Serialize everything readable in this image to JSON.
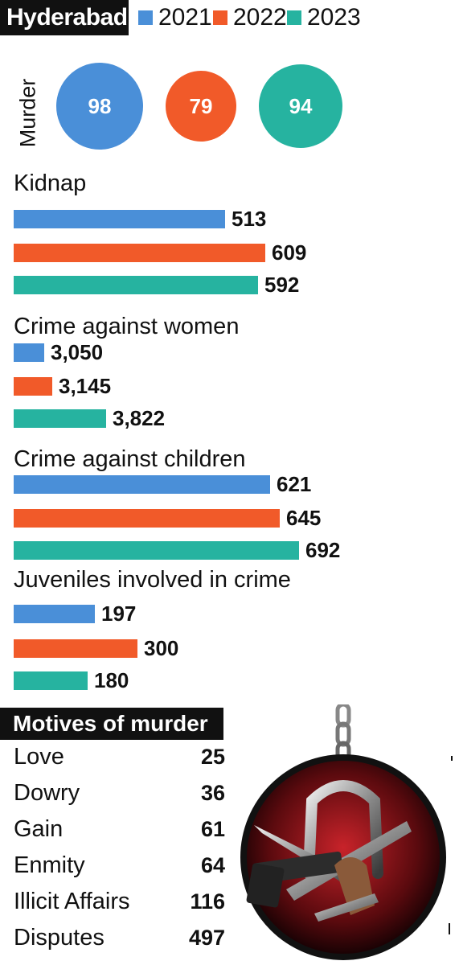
{
  "header": {
    "title": "Hyderabad"
  },
  "colors": {
    "y2021": "#4a8fd8",
    "y2022": "#f15a29",
    "y2023": "#26b3a0"
  },
  "legend": [
    "2021",
    "2022",
    "2023"
  ],
  "chart_data": [
    {
      "type": "bubble",
      "title": "Murder",
      "categories": [
        "2021",
        "2022",
        "2023"
      ],
      "values": [
        98,
        79,
        94
      ],
      "labels": [
        "98",
        "79",
        "94"
      ]
    },
    {
      "type": "bar",
      "title": "Kidnap",
      "categories": [
        "2021",
        "2022",
        "2023"
      ],
      "values": [
        513,
        609,
        592
      ],
      "labels": [
        "513",
        "609",
        "592"
      ]
    },
    {
      "type": "bar",
      "title": "Crime against women",
      "categories": [
        "2021",
        "2022",
        "2023"
      ],
      "values": [
        3050,
        3145,
        3822
      ],
      "labels": [
        "3,050",
        "3,145",
        "3,822"
      ],
      "axis_break": true
    },
    {
      "type": "bar",
      "title": "Crime against children",
      "categories": [
        "2021",
        "2022",
        "2023"
      ],
      "values": [
        621,
        645,
        692
      ],
      "labels": [
        "621",
        "645",
        "692"
      ]
    },
    {
      "type": "bar",
      "title": "Juveniles involved in crime",
      "categories": [
        "2021",
        "2022",
        "2023"
      ],
      "values": [
        197,
        300,
        180
      ],
      "labels": [
        "197",
        "300",
        "180"
      ]
    },
    {
      "type": "table",
      "title": "Motives of murder",
      "rows": [
        {
          "label": "Love",
          "value": "25"
        },
        {
          "label": "Dowry",
          "value": "36"
        },
        {
          "label": "Gain",
          "value": "61"
        },
        {
          "label": "Enmity",
          "value": "64"
        },
        {
          "label": "Illicit Affairs",
          "value": "116"
        },
        {
          "label": "Disputes",
          "value": "497"
        }
      ]
    }
  ],
  "illustration": {
    "icon": "murder-weapons-icon"
  }
}
